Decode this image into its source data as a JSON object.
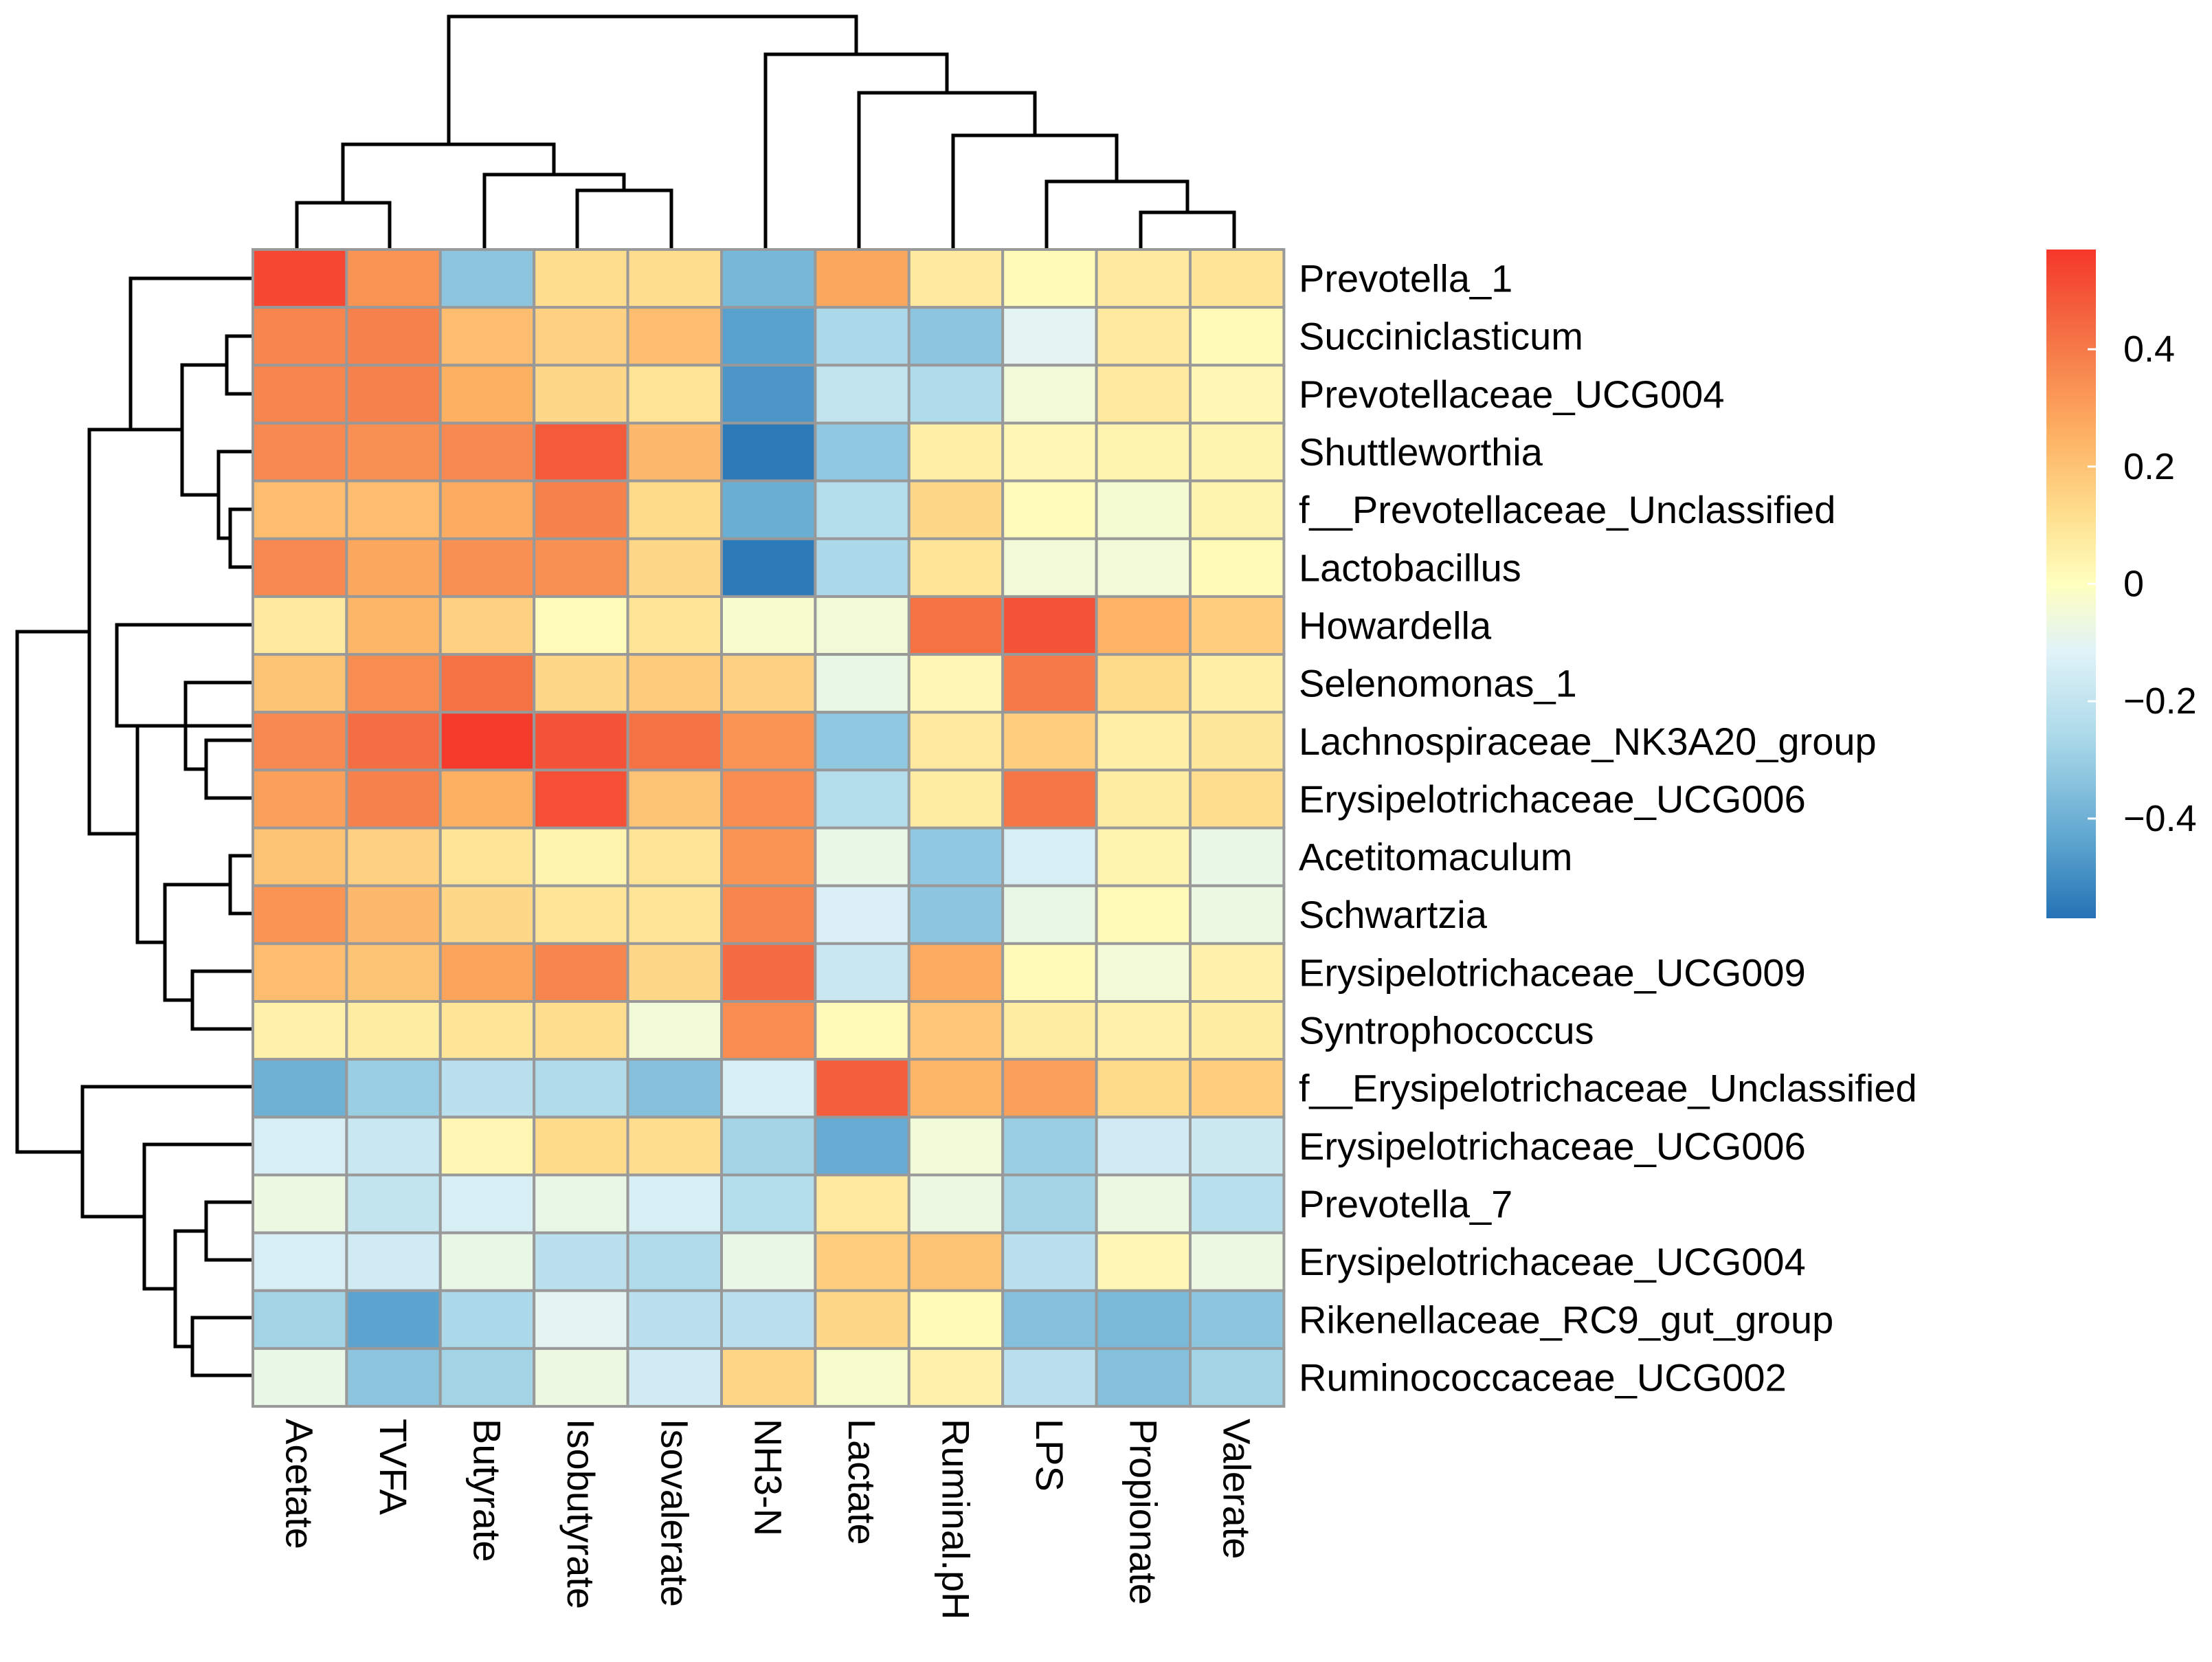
{
  "chart_data": {
    "type": "heatmap",
    "title": "",
    "columns": [
      "Acetate",
      "TVFA",
      "Butyrate",
      "Isobutyrate",
      "Isovalerate",
      "NH3-N",
      "Lactate",
      "Ruminal.pH",
      "LPS",
      "Propionate",
      "Valerate"
    ],
    "rows": [
      "Prevotella_1",
      "Succiniclasticum",
      "Prevotellaceae_UCG004",
      " Shuttleworthia",
      "f__Prevotellaceae_Unclassified",
      "Lactobacillus",
      "Howardella",
      "Selenomonas_1",
      "Lachnospiraceae_NK3A20_group",
      "Erysipelotrichaceae_UCG006",
      "Acetitomaculum",
      "Schwartzia",
      "Erysipelotrichaceae_UCG009",
      "Syntrophococcus",
      "f__Erysipelotrichaceae_Unclassified",
      "Erysipelotrichaceae_UCG006",
      "Prevotella_7",
      "Erysipelotrichaceae_UCG004",
      "Rikenellaceae_RC9_gut_group",
      "Ruminococcaceae_UCG002"
    ],
    "values": [
      [
        0.53,
        0.33,
        -0.33,
        0.12,
        0.12,
        -0.38,
        0.28,
        0.08,
        0.02,
        0.08,
        0.1
      ],
      [
        0.37,
        0.38,
        0.22,
        0.16,
        0.22,
        -0.45,
        -0.26,
        -0.33,
        -0.1,
        0.08,
        0.02
      ],
      [
        0.37,
        0.38,
        0.26,
        0.14,
        0.1,
        -0.48,
        -0.2,
        -0.25,
        -0.05,
        0.08,
        0.03
      ],
      [
        0.36,
        0.34,
        0.36,
        0.48,
        0.23,
        -0.55,
        -0.32,
        0.06,
        0.03,
        0.04,
        0.04
      ],
      [
        0.22,
        0.22,
        0.27,
        0.38,
        0.13,
        -0.41,
        -0.24,
        0.14,
        0.01,
        -0.04,
        0.04
      ],
      [
        0.36,
        0.28,
        0.34,
        0.34,
        0.14,
        -0.55,
        -0.26,
        0.1,
        -0.05,
        -0.05,
        0.02
      ],
      [
        0.08,
        0.24,
        0.16,
        0.01,
        0.1,
        -0.03,
        -0.05,
        0.42,
        0.5,
        0.25,
        0.17
      ],
      [
        0.2,
        0.35,
        0.42,
        0.14,
        0.18,
        0.16,
        -0.08,
        0.03,
        0.4,
        0.13,
        0.06
      ],
      [
        0.36,
        0.43,
        0.56,
        0.5,
        0.42,
        0.33,
        -0.32,
        0.08,
        0.17,
        0.06,
        0.09
      ],
      [
        0.3,
        0.38,
        0.26,
        0.51,
        0.2,
        0.35,
        -0.24,
        0.07,
        0.41,
        0.07,
        0.12
      ],
      [
        0.2,
        0.16,
        0.1,
        0.04,
        0.1,
        0.33,
        -0.08,
        -0.32,
        -0.14,
        0.04,
        -0.08
      ],
      [
        0.33,
        0.23,
        0.14,
        0.1,
        0.1,
        0.37,
        -0.13,
        -0.33,
        -0.08,
        0.02,
        -0.07
      ],
      [
        0.22,
        0.2,
        0.29,
        0.37,
        0.14,
        0.44,
        -0.18,
        0.27,
        0.02,
        -0.05,
        0.05
      ],
      [
        0.05,
        0.07,
        0.1,
        0.12,
        -0.05,
        0.35,
        0.02,
        0.19,
        0.07,
        0.05,
        0.07
      ],
      [
        -0.4,
        -0.3,
        -0.22,
        -0.25,
        -0.35,
        -0.14,
        0.47,
        0.24,
        0.3,
        0.13,
        0.17
      ],
      [
        -0.14,
        -0.18,
        0.03,
        0.13,
        0.12,
        -0.28,
        -0.42,
        -0.05,
        -0.3,
        -0.16,
        -0.17
      ],
      [
        -0.07,
        -0.2,
        -0.14,
        -0.08,
        -0.14,
        -0.24,
        0.08,
        -0.07,
        -0.28,
        -0.07,
        -0.23
      ],
      [
        -0.14,
        -0.16,
        -0.08,
        -0.22,
        -0.25,
        -0.08,
        0.17,
        0.2,
        -0.22,
        0.03,
        -0.07
      ],
      [
        -0.28,
        -0.44,
        -0.26,
        -0.1,
        -0.22,
        -0.22,
        0.14,
        0.02,
        -0.35,
        -0.37,
        -0.33
      ],
      [
        -0.08,
        -0.33,
        -0.28,
        -0.07,
        -0.16,
        0.15,
        -0.03,
        0.05,
        -0.22,
        -0.35,
        -0.28
      ]
    ],
    "colorbar": {
      "ticks": [
        0.4,
        0.2,
        0,
        -0.2,
        -0.4
      ],
      "tick_labels": [
        "0.4",
        "0.2",
        "0",
        "−0.2",
        "−0.4"
      ],
      "range": [
        -0.57,
        0.57
      ],
      "colors": {
        "low": "#2472b5",
        "mid": "#ffffbf",
        "high": "#f5372a"
      }
    },
    "grid_color": "#999999",
    "column_dendrogram": true,
    "row_dendrogram": true
  }
}
